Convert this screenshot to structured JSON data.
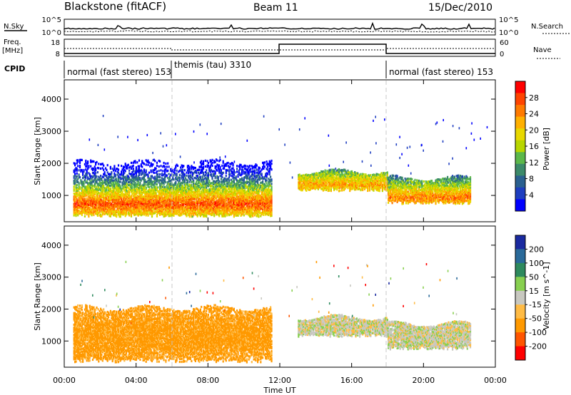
{
  "header": {
    "station": "Blackstone (fitACF)",
    "beam": "Beam 11",
    "date": "15/Dec/2010"
  },
  "strip": {
    "nsky_label": "N.Sky",
    "nsearch_label": "N.Search",
    "noise_tick_hi": "10^5",
    "noise_tick_lo": "10^0",
    "freq_label_1": "Freq.",
    "freq_label_2": "[MHz]",
    "freq_tick_hi": "18",
    "freq_tick_lo": "8",
    "nave_label": "Nave",
    "nave_tick_hi": "60",
    "nave_tick_lo": "0",
    "cpid_label": "CPID",
    "modes": [
      {
        "label": "normal (fast stereo) 153",
        "start_h": 0
      },
      {
        "label": "themis (tau) 3310",
        "start_h": 6
      },
      {
        "label": "normal (fast stereo) 153",
        "start_h": 18
      }
    ]
  },
  "colorbars": {
    "power": {
      "title": "Power [dB]",
      "ticks": [
        "28",
        "24",
        "20",
        "16",
        "12",
        "8",
        "4"
      ],
      "colors": [
        "#ff0000",
        "#ff4400",
        "#ff7a00",
        "#ffb000",
        "#e8d800",
        "#b8d600",
        "#5cb84a",
        "#3c8a6a",
        "#2a6090",
        "#1e3ec0",
        "#0000ff"
      ]
    },
    "velocity": {
      "title": "Velocity [m s^-1]",
      "ticks": [
        "200",
        "100",
        "50",
        "15",
        "-15",
        "-50",
        "-100",
        "-200"
      ],
      "colors": [
        "#1a2aa0",
        "#2a6a9a",
        "#2e8a5e",
        "#88d050",
        "#c8c8c0",
        "#ffbb44",
        "#ff9900",
        "#ff5500",
        "#ff0000"
      ]
    }
  },
  "chart_data": [
    {
      "type": "heatmap",
      "title": "Power",
      "ylabel": "Slant Range [km]",
      "xlabel": "Time UT",
      "xlim_hours": [
        0,
        24
      ],
      "ylim_km": [
        180,
        4600
      ],
      "xticks": [
        "00:00",
        "04:00",
        "08:00",
        "12:00",
        "16:00",
        "20:00",
        "00:00"
      ],
      "yticks": [
        1000,
        2000,
        3000,
        4000
      ],
      "backscatter_bands": [
        {
          "t_start_h": 0.5,
          "t_end_h": 11.5,
          "range_low_km": 300,
          "range_high_km": 2000,
          "peak_range_km": 700,
          "peak_power_db": 26
        },
        {
          "t_start_h": 13,
          "t_end_h": 18,
          "range_low_km": 1100,
          "range_high_km": 1700,
          "peak_range_km": 1300,
          "peak_power_db": 22
        },
        {
          "t_start_h": 18,
          "t_end_h": 22.6,
          "range_low_km": 700,
          "range_high_km": 1500,
          "peak_range_km": 900,
          "peak_power_db": 24
        }
      ]
    },
    {
      "type": "heatmap",
      "title": "Velocity",
      "ylabel": "Slant Range [km]",
      "xlabel": "Time UT",
      "xlim_hours": [
        0,
        24
      ],
      "ylim_km": [
        180,
        4600
      ],
      "xticks": [
        "00:00",
        "04:00",
        "08:00",
        "12:00",
        "16:00",
        "20:00",
        "00:00"
      ],
      "yticks": [
        1000,
        2000,
        3000,
        4000
      ],
      "backscatter_bands": [
        {
          "t_start_h": 0.5,
          "t_end_h": 11.5,
          "range_low_km": 300,
          "range_high_km": 2000,
          "dominant_velocity_ms": -70
        },
        {
          "t_start_h": 13,
          "t_end_h": 18,
          "range_low_km": 1100,
          "range_high_km": 1700,
          "dominant_velocity_ms": 0
        },
        {
          "t_start_h": 18,
          "t_end_h": 22.6,
          "range_low_km": 700,
          "range_high_km": 1500,
          "dominant_velocity_ms": 0
        }
      ]
    }
  ]
}
